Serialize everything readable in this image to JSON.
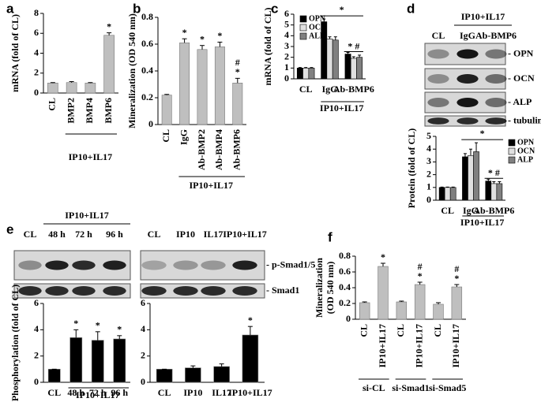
{
  "panel_labels": [
    "a",
    "b",
    "c",
    "d",
    "e",
    "f"
  ],
  "blots": [
    {
      "group_label": "IP10+IL17",
      "lanes": [
        "CL",
        "IgG",
        "Ab-BMP6"
      ],
      "rows": [
        "- OPN",
        "- OCN",
        "- ALP",
        "- tubulin"
      ]
    },
    {
      "group_label": "IP10+IL17",
      "lanes": [
        "CL",
        "48 h",
        "72 h",
        "96 h"
      ]
    },
    {
      "lanes": [
        "CL",
        "IP10",
        "IL17",
        "IP10+IL17"
      ],
      "rows": [
        "- p-Smad1/5",
        "- Smad1"
      ]
    }
  ],
  "chart_data": [
    {
      "type": "bar",
      "y_label": "mRNA (fold of CL)",
      "categories": [
        "CL",
        "BMP2",
        "BMP4",
        "BMP6"
      ],
      "values": [
        1,
        1.05,
        1,
        5.8
      ],
      "errors": [
        0.05,
        0.1,
        0.05,
        0.25
      ],
      "color": "#bfbfbf",
      "ylim": [
        0,
        8
      ],
      "yticks": [
        0,
        2,
        4,
        6,
        8
      ],
      "annotations": [
        null,
        null,
        null,
        [
          "*"
        ]
      ],
      "group_label": "IP10+IL17",
      "rotate_labels": true
    },
    {
      "type": "bar",
      "y_label": "Mineralization (OD 540 nm)",
      "categories": [
        "CL",
        "IgG",
        "Ab-BMP2",
        "Ab-BMP4",
        "Ab-BMP6"
      ],
      "values": [
        0.22,
        0.61,
        0.56,
        0.58,
        0.31
      ],
      "errors": [
        0.005,
        0.03,
        0.03,
        0.035,
        0.035
      ],
      "color": "#bfbfbf",
      "ylim": [
        0,
        0.8
      ],
      "yticks": [
        0,
        0.2,
        0.4,
        0.6,
        0.8
      ],
      "annotations": [
        null,
        [
          "*"
        ],
        [
          "*"
        ],
        [
          "*"
        ],
        [
          "#",
          "*"
        ]
      ],
      "group_label": "IP10+IL17",
      "rotate_labels": true
    },
    {
      "type": "bar",
      "y_label": "mRNA (fold of CL)",
      "categories": [
        "CL",
        "IgG",
        "Ab-BMP6"
      ],
      "series": [
        {
          "name": "OPN",
          "color": "#000000",
          "values": [
            1,
            5.3,
            2.3
          ],
          "errors": [
            0.05,
            0.25,
            0.15
          ]
        },
        {
          "name": "OCN",
          "color": "#e0e0e0",
          "values": [
            1,
            3.7,
            1.9
          ],
          "errors": [
            0.05,
            0.2,
            0.15
          ]
        },
        {
          "name": "ALP",
          "color": "#808080",
          "values": [
            1,
            3.6,
            2.0
          ],
          "errors": [
            0.05,
            0.3,
            0.2
          ]
        }
      ],
      "ylim": [
        0,
        6
      ],
      "yticks": [
        0,
        1,
        2,
        3,
        4,
        5,
        6
      ],
      "bracket_label": "*",
      "annotations": [
        null,
        null,
        "* #"
      ],
      "group_label": "IP10+IL17",
      "legend": "upper left",
      "rotate_labels": false
    },
    {
      "type": "bar",
      "y_label": "Protein (fold of CL)",
      "categories": [
        "CL",
        "IgG",
        "Ab-BMP6"
      ],
      "series": [
        {
          "name": "OPN",
          "color": "#000000",
          "values": [
            1,
            3.4,
            1.5
          ],
          "errors": [
            0.03,
            0.25,
            0.15
          ]
        },
        {
          "name": "OCN",
          "color": "#e0e0e0",
          "values": [
            1,
            3.5,
            1.3
          ],
          "errors": [
            0.03,
            0.5,
            0.15
          ]
        },
        {
          "name": "ALP",
          "color": "#808080",
          "values": [
            1,
            3.8,
            1.3
          ],
          "errors": [
            0.03,
            0.7,
            0.15
          ]
        }
      ],
      "ylim": [
        0,
        5
      ],
      "yticks": [
        0,
        1,
        2,
        3,
        4,
        5
      ],
      "bracket_label": "*",
      "annotations": [
        null,
        null,
        "* #"
      ],
      "group_label": "IP10+IL17",
      "legend": "right",
      "rotate_labels": false
    },
    {
      "type": "bar",
      "y_label": "Phosphorylation (fold of CL)",
      "categories": [
        "CL",
        "48 h",
        "72 h",
        "96 h"
      ],
      "values": [
        1,
        3.4,
        3.2,
        3.3
      ],
      "errors": [
        0,
        0.6,
        0.65,
        0.25
      ],
      "color": "#000000",
      "ylim": [
        0,
        6
      ],
      "yticks": [
        0,
        2,
        4,
        6
      ],
      "annotations": [
        null,
        [
          "*"
        ],
        [
          "*"
        ],
        [
          "*"
        ]
      ],
      "group_label": "IP10+IL17",
      "rotate_labels": false
    },
    {
      "type": "bar",
      "categories": [
        "CL",
        "IP10",
        "IL17",
        "IP10+IL17"
      ],
      "values": [
        1,
        1.1,
        1.2,
        3.6
      ],
      "errors": [
        0,
        0.15,
        0.2,
        0.65
      ],
      "color": "#000000",
      "ylim": [
        0,
        6
      ],
      "yticks": [
        0,
        2,
        4,
        6
      ],
      "annotations": [
        null,
        null,
        null,
        [
          "*"
        ]
      ],
      "rotate_labels": false
    },
    {
      "type": "bar",
      "y_label": [
        "Mineralization",
        "(OD 540 nm)"
      ],
      "categories": [
        "CL",
        "IP10+IL17",
        "CL",
        "IP10+IL17",
        "CL",
        "IP10+IL17"
      ],
      "values": [
        0.21,
        0.67,
        0.22,
        0.44,
        0.19,
        0.41
      ],
      "errors": [
        0.01,
        0.04,
        0.01,
        0.03,
        0.02,
        0.03
      ],
      "color": "#bfbfbf",
      "ylim": [
        0,
        0.8
      ],
      "yticks": [
        0,
        0.2,
        0.4,
        0.6,
        0.8
      ],
      "annotations": [
        null,
        [
          "*"
        ],
        null,
        [
          "#",
          "*"
        ],
        null,
        [
          "#",
          "*"
        ]
      ],
      "groups": [
        "si-CL",
        "si-Smad1",
        "si-Smad5"
      ],
      "rotate_labels": true
    }
  ]
}
